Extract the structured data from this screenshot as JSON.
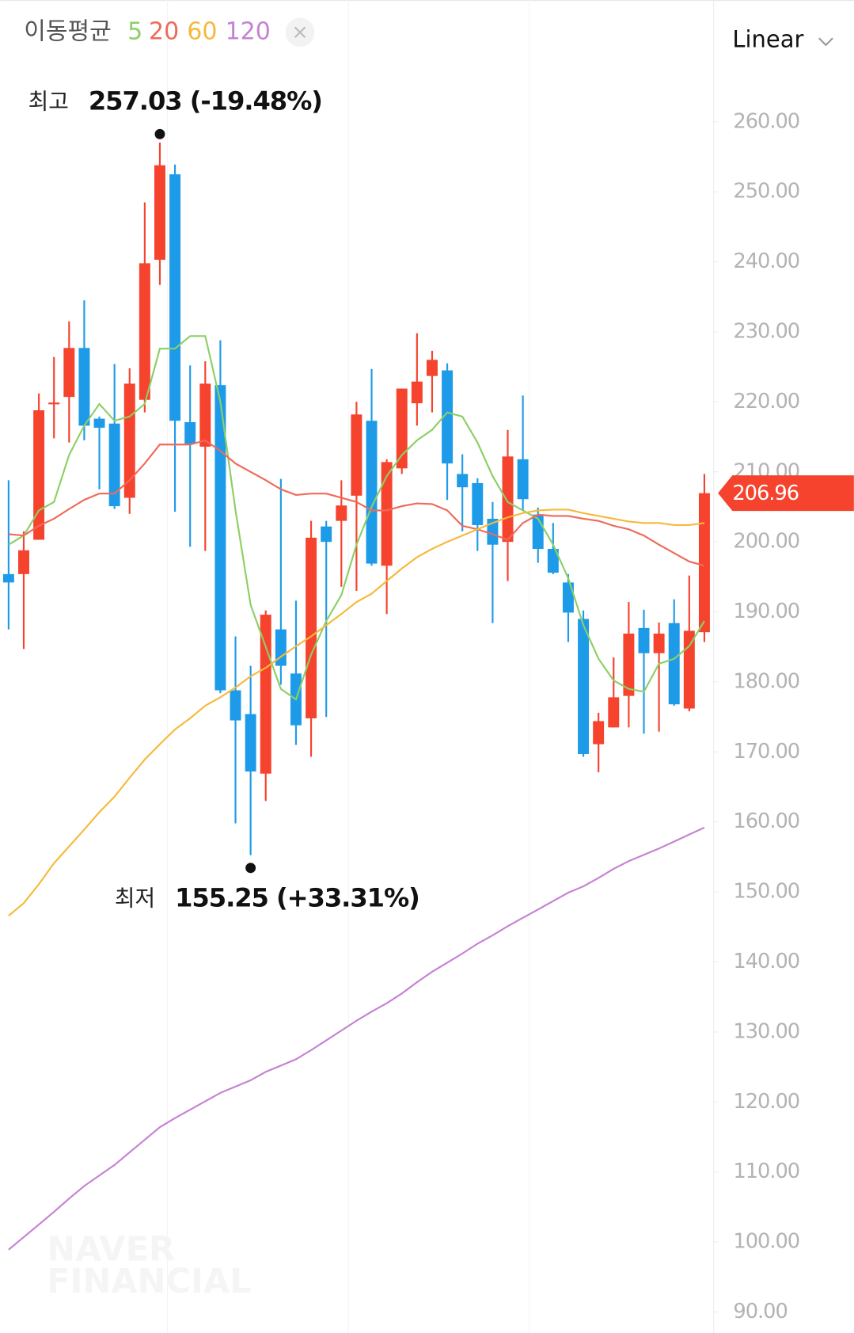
{
  "chart_data": {
    "type": "candlestick",
    "legend_title": "이동평균",
    "scale_mode": "Linear",
    "up_color": "#f5432e",
    "down_color": "#1e9be8",
    "ylim": [
      87,
      277.4
    ],
    "yticks": [
      {
        "value": 90,
        "label": "90.00"
      },
      {
        "value": 100,
        "label": "100.00"
      },
      {
        "value": 110,
        "label": "110.00"
      },
      {
        "value": 120,
        "label": "120.00"
      },
      {
        "value": 130,
        "label": "130.00"
      },
      {
        "value": 140,
        "label": "140.00"
      },
      {
        "value": 150,
        "label": "150.00"
      },
      {
        "value": 160,
        "label": "160.00"
      },
      {
        "value": 170,
        "label": "170.00"
      },
      {
        "value": 180,
        "label": "180.00"
      },
      {
        "value": 190,
        "label": "190.00"
      },
      {
        "value": 200,
        "label": "200.00"
      },
      {
        "value": 210,
        "label": "210.00"
      },
      {
        "value": 220,
        "label": "220.00"
      },
      {
        "value": 230,
        "label": "230.00"
      },
      {
        "value": 240,
        "label": "240.00"
      },
      {
        "value": 250,
        "label": "250.00"
      },
      {
        "value": 260,
        "label": "260.00"
      }
    ],
    "open": [
      195.4,
      195.4,
      200.3,
      219.7,
      220.7,
      227.7,
      217.6,
      216.9,
      206.3,
      220.3,
      240.3,
      252.5,
      217.1,
      213.6,
      222.4,
      178.8,
      175.4,
      166.9,
      187.5,
      181.2,
      174.8,
      202.2,
      203.0,
      206.6,
      217.3,
      196.6,
      210.5,
      219.8,
      223.7,
      224.5,
      209.7,
      208.4,
      203.3,
      200.0,
      211.8,
      203.9,
      199.0,
      194.2,
      189.0,
      171.1,
      173.5,
      178.0,
      187.7,
      184.1,
      188.4,
      176.2,
      187.1
    ],
    "high": [
      208.8,
      201.5,
      221.2,
      226.4,
      231.5,
      234.5,
      217.9,
      225.4,
      224.8,
      248.5,
      257.03,
      253.9,
      225.2,
      225.8,
      228.8,
      186.5,
      182.3,
      190.2,
      209.0,
      191.6,
      203.0,
      203.0,
      208.8,
      220.0,
      224.7,
      211.8,
      221.9,
      229.8,
      227.3,
      225.5,
      212.5,
      209.1,
      205.7,
      216.0,
      220.9,
      204.9,
      202.7,
      195.4,
      190.2,
      175.6,
      183.5,
      191.4,
      190.3,
      188.5,
      191.8,
      195.2,
      209.7
    ],
    "low": [
      187.5,
      184.7,
      200.3,
      214.8,
      214.2,
      214.5,
      207.5,
      204.7,
      204.0,
      218.5,
      236.7,
      204.3,
      199.3,
      198.7,
      178.4,
      159.8,
      155.25,
      163.0,
      179.6,
      171.0,
      169.3,
      175.0,
      193.6,
      193.0,
      196.6,
      189.7,
      209.7,
      216.6,
      218.5,
      206.0,
      201.5,
      198.7,
      188.4,
      194.4,
      204.5,
      197.0,
      195.4,
      185.7,
      169.3,
      167.1,
      173.5,
      173.5,
      172.6,
      172.9,
      176.6,
      175.8,
      185.7
    ],
    "close": [
      194.2,
      198.8,
      218.8,
      219.9,
      227.7,
      216.6,
      216.3,
      205.1,
      222.6,
      239.8,
      253.8,
      217.3,
      214.0,
      222.6,
      178.8,
      174.5,
      167.2,
      189.6,
      182.3,
      173.8,
      200.6,
      200.0,
      205.2,
      218.2,
      196.9,
      211.4,
      221.9,
      222.9,
      226.0,
      211.2,
      207.8,
      202.4,
      199.6,
      212.2,
      206.1,
      199.0,
      195.6,
      189.9,
      169.7,
      174.4,
      177.8,
      186.9,
      184.1,
      186.9,
      176.8,
      187.3,
      206.96
    ],
    "moving_averages": [
      {
        "name": "5",
        "color": "#8ccf66",
        "values": [
          199.6,
          200.9,
          204.5,
          205.7,
          212.4,
          216.6,
          219.7,
          217.3,
          217.9,
          219.7,
          227.6,
          227.6,
          229.4,
          229.4,
          220.0,
          204.5,
          191.0,
          185.0,
          179.0,
          177.5,
          183.9,
          188.7,
          192.4,
          199.6,
          205.0,
          209.4,
          212.4,
          214.5,
          216.0,
          218.5,
          217.9,
          214.2,
          209.4,
          205.7,
          204.5,
          203.3,
          199.6,
          194.8,
          188.1,
          183.3,
          180.2,
          179.0,
          178.6,
          182.6,
          183.3,
          185.1,
          188.7
        ]
      },
      {
        "name": "20",
        "color": "#ef6a58",
        "values": [
          201.1,
          200.9,
          202.3,
          203.3,
          204.7,
          206.0,
          206.9,
          206.9,
          208.8,
          211.2,
          213.9,
          213.9,
          213.9,
          214.5,
          213.0,
          211.2,
          210.0,
          208.8,
          207.5,
          206.7,
          206.9,
          206.9,
          206.3,
          205.7,
          204.5,
          204.5,
          205.1,
          205.5,
          205.4,
          204.5,
          202.3,
          201.8,
          201.1,
          200.3,
          202.7,
          203.9,
          203.7,
          203.7,
          203.3,
          203.0,
          202.3,
          201.8,
          200.9,
          199.6,
          198.4,
          197.2,
          196.6
        ]
      },
      {
        "name": "60",
        "color": "#f6b93b",
        "values": [
          146.6,
          148.4,
          151.1,
          154.1,
          156.5,
          158.9,
          161.4,
          163.6,
          166.3,
          168.9,
          171.1,
          173.2,
          174.8,
          176.6,
          177.8,
          179.2,
          180.8,
          182.0,
          183.6,
          185.1,
          186.5,
          188.1,
          189.7,
          191.4,
          192.6,
          194.4,
          196.2,
          197.8,
          199.0,
          200.0,
          200.9,
          201.8,
          202.7,
          203.5,
          204.1,
          204.5,
          204.6,
          204.6,
          204.1,
          203.7,
          203.3,
          202.9,
          202.7,
          202.7,
          202.4,
          202.4,
          202.7
        ]
      },
      {
        "name": "120",
        "color": "#c682d3",
        "values": [
          98.9,
          100.7,
          102.5,
          104.3,
          106.2,
          108.0,
          109.5,
          111.0,
          112.8,
          114.6,
          116.4,
          117.7,
          118.9,
          120.1,
          121.3,
          122.2,
          123.1,
          124.3,
          125.2,
          126.1,
          127.4,
          128.8,
          130.2,
          131.6,
          132.9,
          134.1,
          135.5,
          137.1,
          138.6,
          139.9,
          141.2,
          142.6,
          143.8,
          145.1,
          146.3,
          147.5,
          148.7,
          149.9,
          150.8,
          152.0,
          153.3,
          154.4,
          155.3,
          156.2,
          157.2,
          158.2,
          159.2
        ]
      }
    ],
    "annotations": [
      {
        "label": "최고",
        "value": 257.03,
        "text": "257.03 (-19.48%)"
      },
      {
        "label": "최저",
        "value": 155.25,
        "text": "155.25 (+33.31%)"
      }
    ],
    "current_price": 206.96,
    "watermark": [
      "NAVER",
      "FINANCIAL"
    ]
  }
}
